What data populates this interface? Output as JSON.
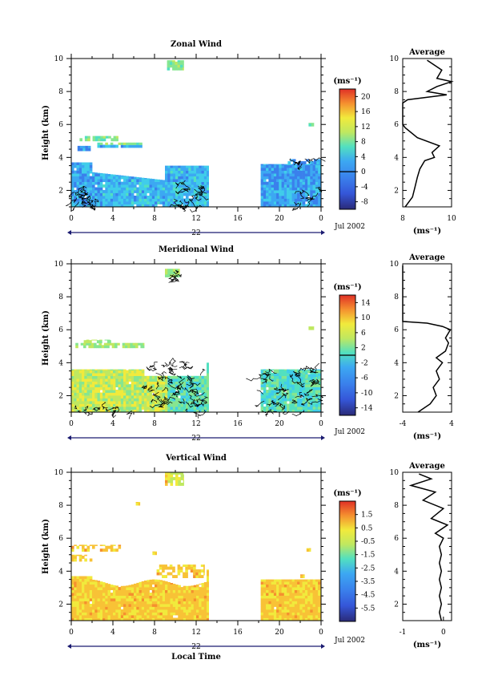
{
  "colors": {
    "scale": [
      "#2a2a78",
      "#2f3aa8",
      "#3556d8",
      "#3a80ec",
      "#3ca8f2",
      "#40cdea",
      "#52e0c0",
      "#86e690",
      "#bfe860",
      "#f1ea3c",
      "#f8c236",
      "#f5902f",
      "#ef5a2c",
      "#e03026"
    ],
    "axis": "#000000",
    "time_axis": "#1a1a70"
  },
  "figure": {
    "xlabel": "Local Time",
    "ylabel": "Height (km)",
    "unit_label": "(ms⁻¹)",
    "avg_unit_label": "(ms⁻¹)",
    "avg_title": "Average",
    "date_label": "Jul 2002"
  },
  "chart_data": [
    {
      "type": "heatmap",
      "title": "Zonal Wind",
      "xlim": [
        0,
        24
      ],
      "ylim": [
        1,
        10
      ],
      "x_ticks": [
        "0",
        "4",
        "8",
        "12",
        "16",
        "20",
        "0"
      ],
      "y_ticks": [
        "2",
        "4",
        "6",
        "8",
        "10"
      ],
      "day_label": "22",
      "date_label": "Jul 2002",
      "colorbar_ticks": [
        "20",
        "16",
        "12",
        "8",
        "4",
        "0",
        "-4",
        "-8"
      ],
      "colorbar_range": [
        -10,
        22
      ],
      "contour_level": 0,
      "data_gaps": [
        [
          13.2,
          18.2
        ]
      ],
      "average": {
        "title": "Average",
        "x_ticks": [
          "8",
          "10"
        ],
        "xlim": [
          8,
          10
        ],
        "profile": [
          [
            8.1,
            1.0
          ],
          [
            8.4,
            1.6
          ],
          [
            8.5,
            2.2
          ],
          [
            8.6,
            2.8
          ],
          [
            8.7,
            3.3
          ],
          [
            8.9,
            3.8
          ],
          [
            9.3,
            4.0
          ],
          [
            9.2,
            4.3
          ],
          [
            9.5,
            4.7
          ],
          [
            8.6,
            5.2
          ],
          [
            8.1,
            5.8
          ],
          [
            8.0,
            6.0
          ],
          [
            8.0,
            7.3
          ],
          [
            8.2,
            7.5
          ],
          [
            9.8,
            7.8
          ],
          [
            9.0,
            8.0
          ],
          [
            9.4,
            8.3
          ],
          [
            10.0,
            8.6
          ],
          [
            9.4,
            8.8
          ],
          [
            9.6,
            9.3
          ],
          [
            9.0,
            9.9
          ]
        ]
      }
    },
    {
      "type": "heatmap",
      "title": "Meridional Wind",
      "xlim": [
        0,
        24
      ],
      "ylim": [
        1,
        10
      ],
      "x_ticks": [
        "0",
        "4",
        "8",
        "12",
        "16",
        "20",
        "0"
      ],
      "y_ticks": [
        "2",
        "4",
        "6",
        "8",
        "10"
      ],
      "day_label": "22",
      "date_label": "Jul 2002",
      "colorbar_ticks": [
        "14",
        "10",
        "6",
        "2",
        "-2",
        "-6",
        "-10",
        "-14"
      ],
      "colorbar_range": [
        -16,
        16
      ],
      "contour_level": 0,
      "data_gaps": [
        [
          13.2,
          18.2
        ]
      ],
      "average": {
        "title": "Average",
        "x_ticks": [
          "-4",
          "4"
        ],
        "xlim": [
          -4,
          4
        ],
        "profile": [
          [
            -1.5,
            1.0
          ],
          [
            0.5,
            1.5
          ],
          [
            1.5,
            2.0
          ],
          [
            1.0,
            2.5
          ],
          [
            2.0,
            3.0
          ],
          [
            1.5,
            3.5
          ],
          [
            2.5,
            4.0
          ],
          [
            1.5,
            4.3
          ],
          [
            3.0,
            4.7
          ],
          [
            3.5,
            5.2
          ],
          [
            3.0,
            5.5
          ],
          [
            3.8,
            6.0
          ],
          [
            2.5,
            6.2
          ],
          [
            0.0,
            6.4
          ],
          [
            -4.0,
            6.5
          ],
          [
            -4.0,
            9.9
          ]
        ]
      }
    },
    {
      "type": "heatmap",
      "title": "Vertical Wind",
      "xlim": [
        0,
        24
      ],
      "ylim": [
        1,
        10
      ],
      "x_ticks": [
        "0",
        "4",
        "8",
        "12",
        "16",
        "20",
        "0"
      ],
      "y_ticks": [
        "2",
        "4",
        "6",
        "8",
        "10"
      ],
      "day_label": "22",
      "date_label": "Jul 2002",
      "colorbar_ticks": [
        "1.5",
        "0.5",
        "-0.5",
        "-1.5",
        "-2.5",
        "-3.5",
        "-4.5",
        "-5.5"
      ],
      "colorbar_range": [
        -6.5,
        2.5
      ],
      "data_gaps": [
        [
          13.2,
          18.2
        ]
      ],
      "average": {
        "title": "Average",
        "x_ticks": [
          "-1",
          "0"
        ],
        "xlim": [
          -1,
          0.2
        ],
        "profile": [
          [
            -0.05,
            1.0
          ],
          [
            -0.1,
            1.5
          ],
          [
            -0.05,
            2.0
          ],
          [
            -0.1,
            2.5
          ],
          [
            -0.05,
            3.0
          ],
          [
            -0.1,
            3.5
          ],
          [
            -0.05,
            4.0
          ],
          [
            -0.1,
            4.5
          ],
          [
            -0.05,
            5.0
          ],
          [
            -0.1,
            5.5
          ],
          [
            0.0,
            6.0
          ],
          [
            -0.2,
            6.3
          ],
          [
            0.1,
            6.8
          ],
          [
            -0.3,
            7.2
          ],
          [
            0.0,
            7.8
          ],
          [
            -0.5,
            8.3
          ],
          [
            -0.2,
            8.8
          ],
          [
            -0.8,
            9.2
          ],
          [
            -0.3,
            9.6
          ],
          [
            -0.6,
            9.9
          ]
        ]
      }
    }
  ]
}
